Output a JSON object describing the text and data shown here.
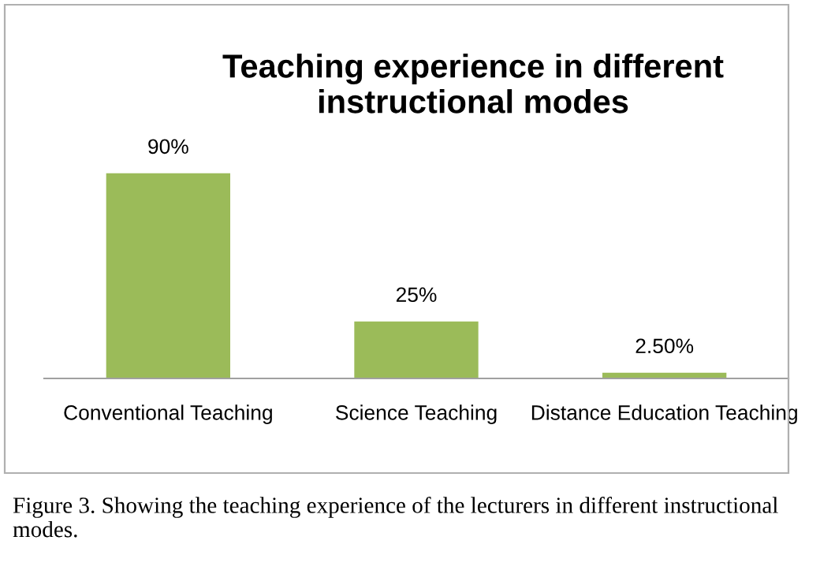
{
  "chart_data": {
    "type": "bar",
    "title": "Teaching experience in different instructional modes",
    "categories": [
      "Conventional Teaching",
      "Science Teaching",
      "Distance Education Teaching"
    ],
    "values": [
      90,
      25,
      2.5
    ],
    "value_labels": [
      "90%",
      "25%",
      "2.50%"
    ],
    "color": "#9bbb59",
    "grid": false,
    "legend": false,
    "annotations": [
      "Figure 3. Showing the teaching experience of the lecturers in different instructional modes."
    ]
  }
}
